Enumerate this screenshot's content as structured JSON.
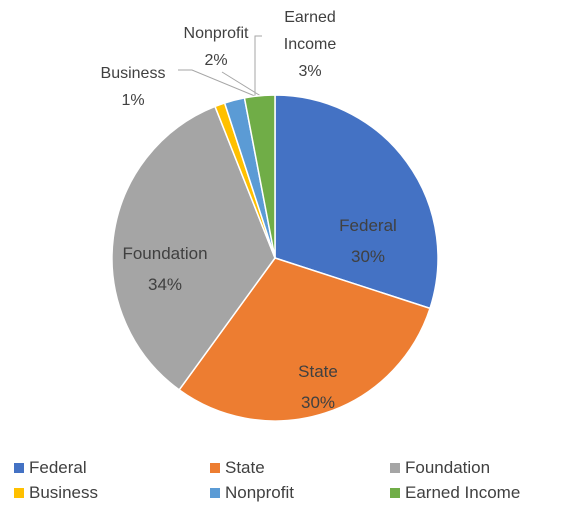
{
  "chart_data": {
    "type": "pie",
    "categories": [
      "Federal",
      "State",
      "Foundation",
      "Business",
      "Nonprofit",
      "Earned Income"
    ],
    "values": [
      30,
      30,
      34,
      1,
      2,
      3
    ],
    "value_labels": [
      "30%",
      "30%",
      "34%",
      "1%",
      "2%",
      "3%"
    ],
    "colors": [
      "#4472c4",
      "#ed7d31",
      "#a5a5a5",
      "#ffc000",
      "#5b9bd5",
      "#70ad47"
    ],
    "legend": "bottom"
  }
}
